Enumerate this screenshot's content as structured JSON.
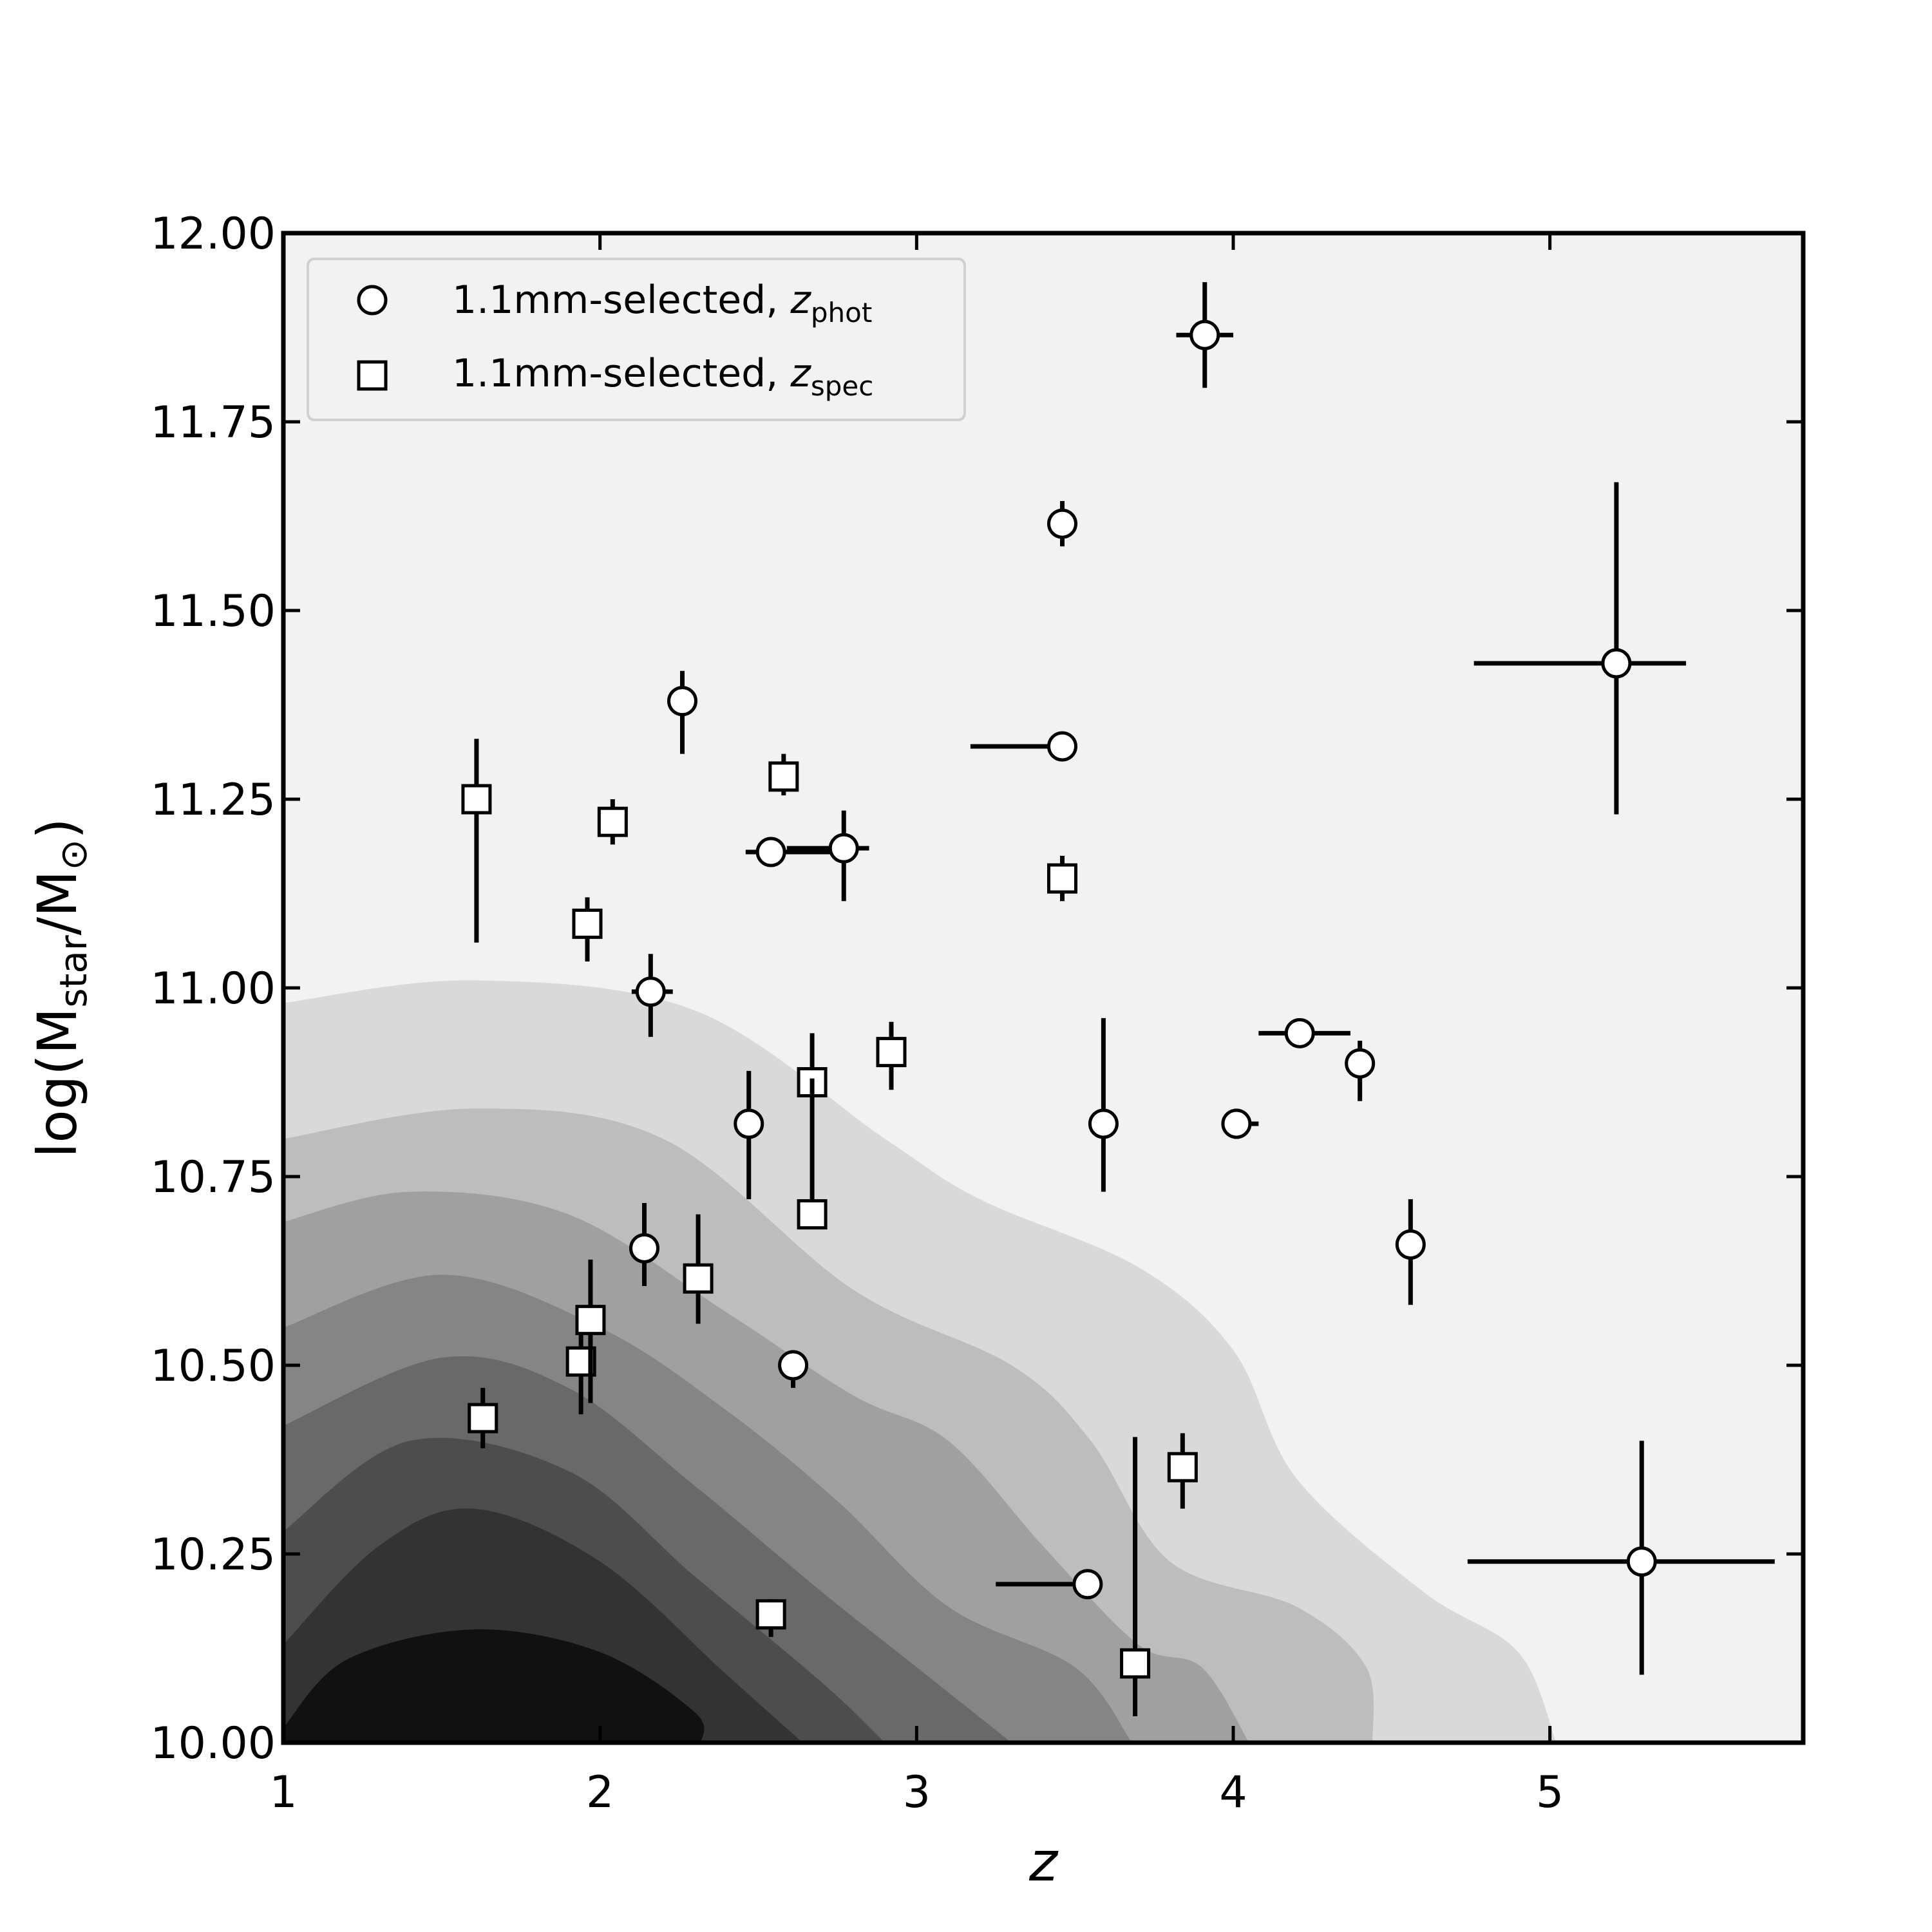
{
  "chart_data": {
    "type": "scatter",
    "title": "",
    "xlabel": "z",
    "ylabel": {
      "prefix": "log(M",
      "sub": "star",
      "mid": "/M",
      "sub2": "⊙",
      "suffix": ")"
    },
    "xlim": [
      1,
      5.8
    ],
    "ylim": [
      10.0,
      12.0
    ],
    "xticks": [
      "1",
      "2",
      "3",
      "4",
      "5"
    ],
    "xtick_values": [
      1,
      2,
      3,
      4,
      5
    ],
    "yticks": [
      "10.00",
      "10.25",
      "10.50",
      "10.75",
      "11.00",
      "11.25",
      "11.50",
      "11.75",
      "12.00"
    ],
    "ytick_values": [
      10.0,
      10.25,
      10.5,
      10.75,
      11.0,
      11.25,
      11.5,
      11.75,
      12.0
    ],
    "grid": false,
    "legend_position": "top-left",
    "colors": {
      "background": "#f2f2f2",
      "contours": [
        "#d9d9d9",
        "#bdbdbd",
        "#a0a0a0",
        "#858585",
        "#696969",
        "#4d4d4d",
        "#333333",
        "#111111"
      ]
    },
    "density_contours": [
      [
        [
          1.0,
          10.98
        ],
        [
          1.6,
          11.01
        ],
        [
          2.3,
          10.97
        ],
        [
          2.9,
          10.8
        ],
        [
          3.2,
          10.72
        ],
        [
          3.7,
          10.63
        ],
        [
          4.0,
          10.52
        ],
        [
          4.2,
          10.35
        ],
        [
          4.6,
          10.2
        ],
        [
          4.9,
          10.12
        ],
        [
          5.02,
          10.0
        ]
      ],
      [
        [
          1.0,
          10.8
        ],
        [
          1.6,
          10.84
        ],
        [
          2.2,
          10.8
        ],
        [
          2.8,
          10.6
        ],
        [
          3.3,
          10.5
        ],
        [
          3.55,
          10.4
        ],
        [
          3.8,
          10.24
        ],
        [
          4.2,
          10.18
        ],
        [
          4.42,
          10.1
        ],
        [
          4.44,
          10.0
        ]
      ],
      [
        [
          1.0,
          10.69
        ],
        [
          1.4,
          10.73
        ],
        [
          1.9,
          10.7
        ],
        [
          2.4,
          10.57
        ],
        [
          2.8,
          10.46
        ],
        [
          3.1,
          10.4
        ],
        [
          3.4,
          10.26
        ],
        [
          3.7,
          10.13
        ],
        [
          3.9,
          10.1
        ],
        [
          4.05,
          10.0
        ]
      ],
      [
        [
          1.0,
          10.55
        ],
        [
          1.5,
          10.62
        ],
        [
          2.0,
          10.55
        ],
        [
          2.4,
          10.44
        ],
        [
          2.75,
          10.32
        ],
        [
          3.1,
          10.18
        ],
        [
          3.5,
          10.1
        ],
        [
          3.68,
          10.0
        ]
      ],
      [
        [
          1.0,
          10.42
        ],
        [
          1.5,
          10.51
        ],
        [
          1.9,
          10.47
        ],
        [
          2.3,
          10.34
        ],
        [
          2.7,
          10.2
        ],
        [
          3.0,
          10.1
        ],
        [
          3.3,
          10.0
        ]
      ],
      [
        [
          1.0,
          10.28
        ],
        [
          1.4,
          10.4
        ],
        [
          1.9,
          10.36
        ],
        [
          2.3,
          10.22
        ],
        [
          2.7,
          10.08
        ],
        [
          2.9,
          10.0
        ]
      ],
      [
        [
          1.0,
          10.13
        ],
        [
          1.3,
          10.26
        ],
        [
          1.6,
          10.31
        ],
        [
          2.0,
          10.24
        ],
        [
          2.4,
          10.09
        ],
        [
          2.64,
          10.0
        ]
      ],
      [
        [
          1.0,
          10.02
        ],
        [
          1.2,
          10.11
        ],
        [
          1.6,
          10.15
        ],
        [
          2.0,
          10.12
        ],
        [
          2.3,
          10.04
        ],
        [
          2.32,
          10.0
        ]
      ]
    ],
    "series": [
      {
        "name": "1.1mm-selected, z_phot",
        "legend_label": "1.1mm-selected, ",
        "legend_var": "z",
        "legend_sub": "phot",
        "marker": "circle",
        "points": [
          {
            "x": 3.91,
            "y": 11.865,
            "xerr": [
              0.09,
              0.09
            ],
            "yerr": [
              0.07,
              0.07
            ]
          },
          {
            "x": 3.46,
            "y": 11.615,
            "xerr": [
              0,
              0
            ],
            "yerr": [
              0.03,
              0.03
            ]
          },
          {
            "x": 5.21,
            "y": 11.43,
            "xerr": [
              0.45,
              0.22
            ],
            "yerr": [
              0.2,
              0.24
            ]
          },
          {
            "x": 2.26,
            "y": 11.38,
            "xerr": [
              0,
              0
            ],
            "yerr": [
              0.07,
              0.04
            ]
          },
          {
            "x": 3.46,
            "y": 11.32,
            "xerr": [
              0.29,
              0
            ],
            "yerr": [
              0,
              0
            ]
          },
          {
            "x": 2.54,
            "y": 11.18,
            "xerr": [
              0.08,
              0.22
            ],
            "yerr": [
              0,
              0
            ]
          },
          {
            "x": 2.77,
            "y": 11.185,
            "xerr": [
              0.18,
              0.08
            ],
            "yerr": [
              0.07,
              0.05
            ]
          },
          {
            "x": 2.16,
            "y": 10.995,
            "xerr": [
              0.06,
              0.07
            ],
            "yerr": [
              0.06,
              0.05
            ]
          },
          {
            "x": 4.21,
            "y": 10.94,
            "xerr": [
              0.13,
              0.16
            ],
            "yerr": [
              0,
              0
            ]
          },
          {
            "x": 4.4,
            "y": 10.9,
            "xerr": [
              0,
              0
            ],
            "yerr": [
              0.05,
              0.03
            ]
          },
          {
            "x": 2.47,
            "y": 10.82,
            "xerr": [
              0,
              0
            ],
            "yerr": [
              0.1,
              0.07
            ]
          },
          {
            "x": 3.59,
            "y": 10.82,
            "xerr": [
              0,
              0
            ],
            "yerr": [
              0.09,
              0.14
            ]
          },
          {
            "x": 4.01,
            "y": 10.82,
            "xerr": [
              0,
              0.07
            ],
            "yerr": [
              0.02,
              0.02
            ]
          },
          {
            "x": 2.14,
            "y": 10.655,
            "xerr": [
              0,
              0
            ],
            "yerr": [
              0.05,
              0.06
            ]
          },
          {
            "x": 4.56,
            "y": 10.66,
            "xerr": [
              0,
              0
            ],
            "yerr": [
              0.08,
              0.06
            ]
          },
          {
            "x": 2.61,
            "y": 10.5,
            "xerr": [
              0,
              0
            ],
            "yerr": [
              0.03,
              0.02
            ]
          },
          {
            "x": 3.54,
            "y": 10.21,
            "xerr": [
              0.29,
              0
            ],
            "yerr": [
              0,
              0
            ]
          },
          {
            "x": 5.29,
            "y": 10.24,
            "xerr": [
              0.55,
              0.42
            ],
            "yerr": [
              0.15,
              0.16
            ]
          }
        ]
      },
      {
        "name": "1.1mm-selected, z_spec",
        "legend_label": "1.1mm-selected, ",
        "legend_var": "z",
        "legend_sub": "spec",
        "marker": "square",
        "points": [
          {
            "x": 1.61,
            "y": 11.25,
            "xerr": [
              0,
              0
            ],
            "yerr": [
              0.19,
              0.08
            ]
          },
          {
            "x": 1.63,
            "y": 10.43,
            "xerr": [
              0,
              0
            ],
            "yerr": [
              0.04,
              0.04
            ]
          },
          {
            "x": 2.04,
            "y": 11.22,
            "xerr": [
              0,
              0
            ],
            "yerr": [
              0.03,
              0.03
            ]
          },
          {
            "x": 1.96,
            "y": 11.085,
            "xerr": [
              0,
              0
            ],
            "yerr": [
              0.05,
              0.035
            ]
          },
          {
            "x": 1.94,
            "y": 10.505,
            "xerr": [
              0,
              0
            ],
            "yerr": [
              0.07,
              0.04
            ]
          },
          {
            "x": 1.97,
            "y": 10.56,
            "xerr": [
              0,
              0
            ],
            "yerr": [
              0.11,
              0.08
            ]
          },
          {
            "x": 2.31,
            "y": 10.615,
            "xerr": [
              0,
              0
            ],
            "yerr": [
              0.06,
              0.085
            ]
          },
          {
            "x": 2.58,
            "y": 11.28,
            "xerr": [
              0,
              0
            ],
            "yerr": [
              0.025,
              0.03
            ]
          },
          {
            "x": 2.67,
            "y": 10.875,
            "xerr": [
              0,
              0
            ],
            "yerr": [
              0.0,
              0.065
            ]
          },
          {
            "x": 2.67,
            "y": 10.7,
            "xerr": [
              0,
              0
            ],
            "yerr": [
              0.0,
              0.18
            ]
          },
          {
            "x": 2.92,
            "y": 10.915,
            "xerr": [
              0,
              0
            ],
            "yerr": [
              0.05,
              0.04
            ]
          },
          {
            "x": 3.46,
            "y": 11.145,
            "xerr": [
              0,
              0
            ],
            "yerr": [
              0.03,
              0.03
            ]
          },
          {
            "x": 2.54,
            "y": 10.17,
            "xerr": [
              0,
              0
            ],
            "yerr": [
              0.03,
              0.02
            ]
          },
          {
            "x": 3.69,
            "y": 10.105,
            "xerr": [
              0,
              0
            ],
            "yerr": [
              0.07,
              0.3
            ]
          },
          {
            "x": 3.84,
            "y": 10.365,
            "xerr": [
              0,
              0
            ],
            "yerr": [
              0.055,
              0.045
            ]
          }
        ]
      }
    ]
  }
}
